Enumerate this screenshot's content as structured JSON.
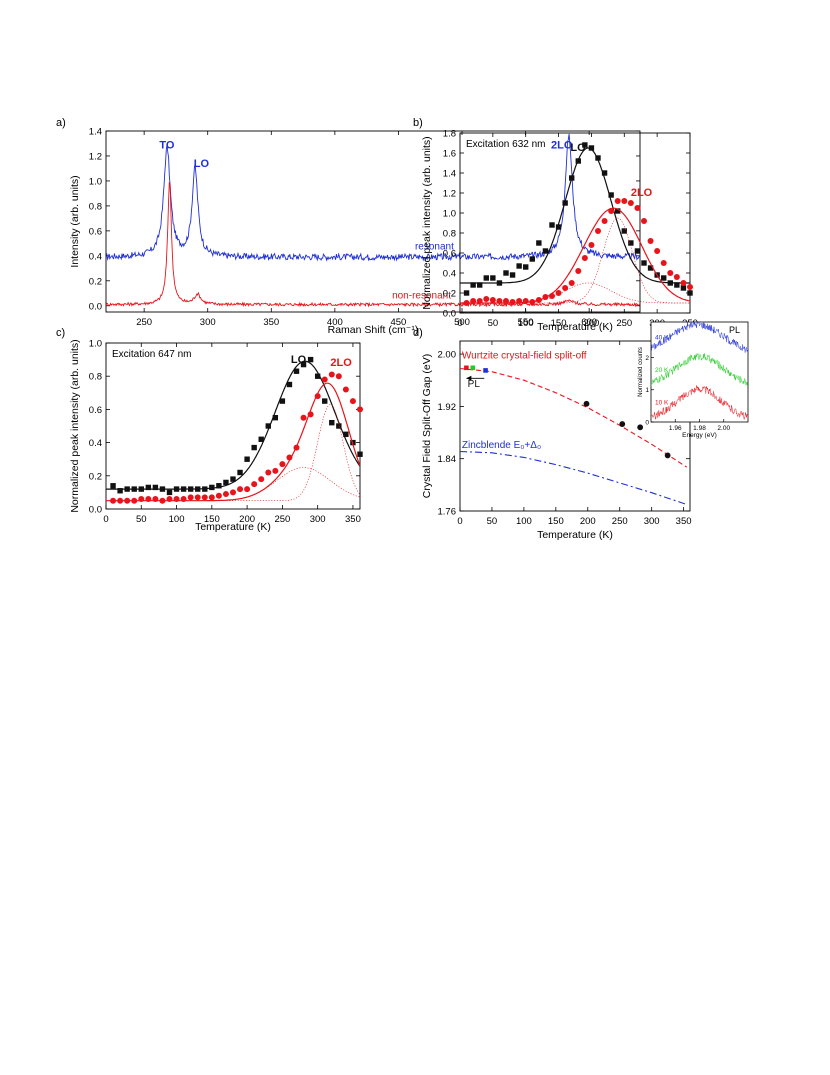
{
  "colors": {
    "black": "#111111",
    "red": "#e8141b",
    "blue": "#1f2fd6",
    "green": "#22cc22",
    "axis": "#000000"
  },
  "chart_data": [
    {
      "id": "a",
      "panel_label": "a)",
      "type": "line",
      "xlabel": "Raman Shift (cm⁻¹)",
      "ylabel": "Intensity (arb. units)",
      "xlim": [
        220,
        640
      ],
      "ylim": [
        -0.05,
        1.4
      ],
      "xticks": [
        250,
        300,
        350,
        400,
        450,
        500,
        550,
        600
      ],
      "yticks": [
        0.0,
        0.2,
        0.4,
        0.6,
        0.8,
        1.0,
        1.2,
        1.4
      ],
      "ytick_decimals": 1,
      "series": [
        {
          "name": "resonant",
          "color": "blue",
          "baseline": 0.39,
          "noise": 0.025,
          "peaks": [
            {
              "x": 268,
              "h": 0.87,
              "w": 3.2
            },
            {
              "x": 290,
              "h": 0.7,
              "w": 2.8
            },
            {
              "x": 584,
              "h": 0.97,
              "w": 3.5
            }
          ]
        },
        {
          "name": "non-resonant",
          "color": "red",
          "baseline": 0.01,
          "noise": 0.012,
          "peaks": [
            {
              "x": 270,
              "h": 1.0,
              "w": 1.8
            },
            {
              "x": 292,
              "h": 0.08,
              "w": 3.0
            },
            {
              "x": 584,
              "h": 0.03,
              "w": 5.0
            }
          ]
        }
      ],
      "annotations": [
        {
          "text": "TO",
          "x": 262,
          "y": 1.26,
          "color": "blue",
          "bold": true
        },
        {
          "text": "LO",
          "x": 289,
          "y": 1.11,
          "color": "blue",
          "bold": true
        },
        {
          "text": "2LO",
          "x": 570,
          "y": 1.26,
          "color": "blue",
          "bold": true
        },
        {
          "text": "resonant",
          "x": 463,
          "y": 0.45,
          "color": "blue",
          "bold": false
        },
        {
          "text": "non-resonant",
          "x": 445,
          "y": 0.06,
          "color": "red",
          "bold": false
        }
      ]
    },
    {
      "id": "b",
      "panel_label": "b)",
      "type": "scatter",
      "title": "Excitation 632 nm",
      "xlabel": "Temperature (K)",
      "ylabel": "Normalized peak intensity (arb. units)",
      "xlim": [
        0,
        350
      ],
      "ylim": [
        0,
        1.8
      ],
      "xticks": [
        0,
        50,
        100,
        150,
        200,
        250,
        300,
        350
      ],
      "yticks": [
        0.0,
        0.2,
        0.4,
        0.6,
        0.8,
        1.0,
        1.2,
        1.4,
        1.6,
        1.8
      ],
      "ytick_decimals": 1,
      "series": [
        {
          "name": "LO",
          "color": "black",
          "marker": "square",
          "x": [
            10,
            20,
            30,
            40,
            50,
            60,
            70,
            80,
            90,
            100,
            110,
            120,
            130,
            140,
            150,
            160,
            170,
            180,
            190,
            200,
            210,
            220,
            230,
            240,
            250,
            260,
            270,
            280,
            290,
            300,
            310,
            320,
            330,
            340,
            350
          ],
          "y": [
            0.2,
            0.28,
            0.28,
            0.35,
            0.35,
            0.3,
            0.4,
            0.38,
            0.47,
            0.46,
            0.54,
            0.7,
            0.62,
            0.88,
            0.86,
            1.1,
            1.35,
            1.52,
            1.68,
            1.65,
            1.55,
            1.4,
            1.18,
            1.02,
            0.82,
            0.7,
            0.62,
            0.5,
            0.45,
            0.38,
            0.35,
            0.3,
            0.28,
            0.25,
            0.2
          ],
          "fit": {
            "base": 0.3,
            "peaks": [
              {
                "c": 195,
                "a": 1.35,
                "s": 35
              }
            ]
          }
        },
        {
          "name": "2LO",
          "color": "red",
          "marker": "circle",
          "x": [
            10,
            20,
            30,
            40,
            50,
            60,
            70,
            80,
            90,
            100,
            110,
            120,
            130,
            140,
            150,
            160,
            170,
            180,
            190,
            200,
            210,
            220,
            230,
            240,
            250,
            260,
            270,
            280,
            290,
            300,
            310,
            320,
            330,
            340,
            350
          ],
          "y": [
            0.1,
            0.12,
            0.12,
            0.14,
            0.13,
            0.12,
            0.12,
            0.11,
            0.12,
            0.12,
            0.11,
            0.13,
            0.16,
            0.17,
            0.2,
            0.25,
            0.3,
            0.42,
            0.55,
            0.68,
            0.82,
            0.92,
            1.02,
            1.12,
            1.12,
            1.1,
            1.05,
            0.92,
            0.72,
            0.62,
            0.5,
            0.4,
            0.36,
            0.3,
            0.26
          ],
          "fit": {
            "base": 0.1,
            "peaks": [
              {
                "c": 195,
                "a": 0.2,
                "s": 35
              },
              {
                "c": 240,
                "a": 0.85,
                "s": 40
              }
            ]
          },
          "components": [
            {
              "base": 0.1,
              "peaks": [
                {
                  "c": 195,
                  "a": 0.2,
                  "s": 35
                }
              ]
            },
            {
              "base": 0.1,
              "peaks": [
                {
                  "c": 240,
                  "a": 0.85,
                  "s": 22
                }
              ]
            }
          ]
        }
      ],
      "annotations": [
        {
          "text": "LO",
          "x": 168,
          "y": 1.62,
          "color": "black",
          "bold": true
        },
        {
          "text": "2LO",
          "x": 260,
          "y": 1.17,
          "color": "red",
          "bold": true
        }
      ]
    },
    {
      "id": "c",
      "panel_label": "c)",
      "type": "scatter",
      "title": "Excitation 647 nm",
      "xlabel": "Temperature (K)",
      "ylabel": "Normalized peak intensity (arb. units)",
      "xlim": [
        0,
        360
      ],
      "ylim": [
        0,
        1.0
      ],
      "xticks": [
        0,
        50,
        100,
        150,
        200,
        250,
        300,
        350
      ],
      "yticks": [
        0.0,
        0.2,
        0.4,
        0.6,
        0.8,
        1.0
      ],
      "ytick_decimals": 1,
      "series": [
        {
          "name": "LO",
          "color": "black",
          "marker": "square",
          "x": [
            10,
            20,
            30,
            40,
            50,
            60,
            70,
            80,
            90,
            100,
            110,
            120,
            130,
            140,
            150,
            160,
            170,
            180,
            190,
            200,
            210,
            220,
            230,
            240,
            250,
            260,
            270,
            280,
            290,
            300,
            310,
            320,
            330,
            340,
            350,
            360
          ],
          "y": [
            0.14,
            0.11,
            0.12,
            0.12,
            0.12,
            0.13,
            0.13,
            0.12,
            0.1,
            0.12,
            0.12,
            0.12,
            0.12,
            0.12,
            0.13,
            0.14,
            0.16,
            0.18,
            0.22,
            0.3,
            0.37,
            0.42,
            0.5,
            0.55,
            0.65,
            0.75,
            0.83,
            0.87,
            0.9,
            0.8,
            0.65,
            0.52,
            0.5,
            0.45,
            0.4,
            0.33
          ],
          "fit": {
            "base": 0.12,
            "peaks": [
              {
                "c": 282,
                "a": 0.77,
                "s": 42
              }
            ]
          }
        },
        {
          "name": "2LO",
          "color": "red",
          "marker": "circle",
          "x": [
            10,
            20,
            30,
            40,
            50,
            60,
            70,
            80,
            90,
            100,
            110,
            120,
            130,
            140,
            150,
            160,
            170,
            180,
            190,
            200,
            210,
            220,
            230,
            240,
            250,
            260,
            270,
            280,
            290,
            300,
            310,
            320,
            330,
            340,
            350,
            360
          ],
          "y": [
            0.05,
            0.05,
            0.05,
            0.05,
            0.06,
            0.06,
            0.06,
            0.05,
            0.06,
            0.06,
            0.06,
            0.07,
            0.07,
            0.07,
            0.07,
            0.08,
            0.09,
            0.1,
            0.12,
            0.12,
            0.15,
            0.18,
            0.22,
            0.23,
            0.27,
            0.31,
            0.37,
            0.55,
            0.57,
            0.68,
            0.78,
            0.81,
            0.8,
            0.72,
            0.65,
            0.6
          ],
          "fit": {
            "base": 0.05,
            "peaks": [
              {
                "c": 280,
                "a": 0.2,
                "s": 38
              },
              {
                "c": 318,
                "a": 0.58,
                "s": 28
              }
            ]
          },
          "components": [
            {
              "base": 0.05,
              "peaks": [
                {
                  "c": 280,
                  "a": 0.2,
                  "s": 38
                }
              ]
            },
            {
              "base": 0.05,
              "peaks": [
                {
                  "c": 318,
                  "a": 0.58,
                  "s": 18
                }
              ]
            }
          ]
        }
      ],
      "annotations": [
        {
          "text": "LO",
          "x": 262,
          "y": 0.88,
          "color": "black",
          "bold": true
        },
        {
          "text": "2LO",
          "x": 318,
          "y": 0.86,
          "color": "red",
          "bold": true
        }
      ]
    },
    {
      "id": "d",
      "panel_label": "d)",
      "type": "line",
      "xlabel": "Temperature (K)",
      "ylabel": "Crystal Field Split-Off Gap (eV)",
      "xlim": [
        0,
        360
      ],
      "ylim": [
        1.76,
        2.02
      ],
      "xticks": [
        0,
        50,
        100,
        150,
        200,
        250,
        300,
        350
      ],
      "yticks": [
        1.76,
        1.84,
        1.92,
        2.0
      ],
      "ytick_decimals": 2,
      "series": [
        {
          "name": "Wurtzite crystal-field split-off",
          "color": "red",
          "dash": "5,3",
          "x": [
            0,
            50,
            100,
            150,
            200,
            250,
            300,
            355
          ],
          "y": [
            1.978,
            1.973,
            1.96,
            1.941,
            1.918,
            1.891,
            1.862,
            1.827
          ]
        },
        {
          "name": "Zincblende E₀+Δ₀",
          "color": "blue",
          "dash": "7,3,2,3",
          "x": [
            0,
            50,
            100,
            150,
            200,
            250,
            300,
            355
          ],
          "y": [
            1.851,
            1.849,
            1.842,
            1.831,
            1.818,
            1.803,
            1.788,
            1.77
          ]
        }
      ],
      "points": [
        {
          "x": 10,
          "y": 1.979,
          "color": "red",
          "marker": "square"
        },
        {
          "x": 20,
          "y": 1.979,
          "color": "green",
          "marker": "square"
        },
        {
          "x": 40,
          "y": 1.975,
          "color": "blue",
          "marker": "square"
        },
        {
          "x": 198,
          "y": 1.924,
          "color": "black",
          "marker": "circle"
        },
        {
          "x": 254,
          "y": 1.893,
          "color": "black",
          "marker": "circle"
        },
        {
          "x": 282,
          "y": 1.888,
          "color": "black",
          "marker": "circle"
        },
        {
          "x": 325,
          "y": 1.845,
          "color": "black",
          "marker": "circle"
        }
      ],
      "annotations": [
        {
          "text": "Wurtzite crystal-field split-off",
          "x": 3,
          "y": 1.993,
          "color": "red",
          "bold": false
        },
        {
          "text": "PL",
          "x": 12,
          "y": 1.95,
          "color": "black",
          "bold": false
        },
        {
          "text": "Zincblende E₀+Δ₀",
          "x": 3,
          "y": 1.856,
          "color": "blue",
          "bold": false
        }
      ],
      "inset": {
        "type": "line",
        "xlabel": "Energy (eV)",
        "ylabel": "Normalized counts",
        "xlim": [
          1.94,
          2.02
        ],
        "ylim": [
          0,
          3.1
        ],
        "xticks": [
          1.96,
          1.98,
          2.0
        ],
        "yticks": [
          0,
          1,
          2
        ],
        "ytick_decimals": 2,
        "label": "PL",
        "series": [
          {
            "name": "40 K",
            "color": "blue",
            "offset": 2.0,
            "center": 1.978,
            "amp": 0.95,
            "width": 0.022,
            "noise": 0.12
          },
          {
            "name": "20 K",
            "color": "green",
            "offset": 1.0,
            "center": 1.98,
            "amp": 0.95,
            "width": 0.02,
            "noise": 0.12
          },
          {
            "name": "10 K",
            "color": "red",
            "offset": 0.0,
            "center": 1.98,
            "amp": 0.95,
            "width": 0.018,
            "noise": 0.12
          }
        ]
      }
    }
  ]
}
